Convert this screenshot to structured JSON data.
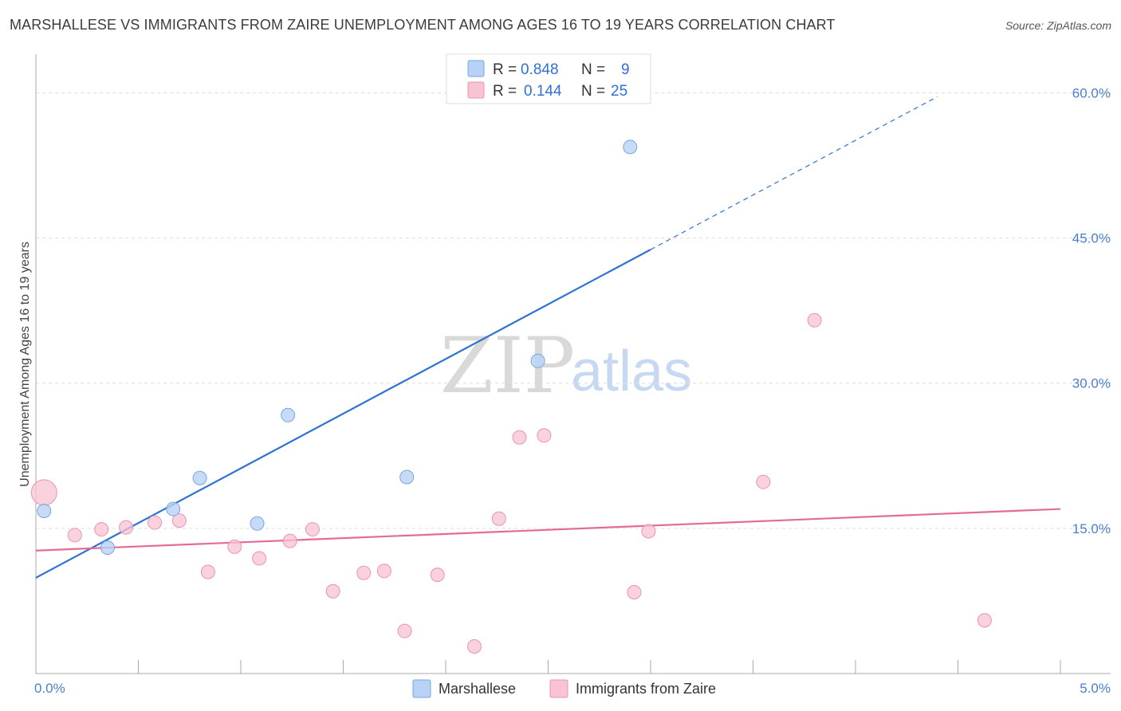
{
  "header": {
    "title": "MARSHALLESE VS IMMIGRANTS FROM ZAIRE UNEMPLOYMENT AMONG AGES 16 TO 19 YEARS CORRELATION CHART",
    "source": "Source: ZipAtlas.com"
  },
  "watermark": {
    "zip": "ZIP",
    "atlas": "atlas"
  },
  "colors": {
    "marshallese_fill": "#b7d2f5",
    "marshallese_stroke": "#7aa5e0",
    "marshallese_line": "#2e72d2",
    "zaire_fill": "#f8c3d3",
    "zaire_stroke": "#eb93b0",
    "zaire_line": "#e36b96",
    "grid": "#dddddd",
    "tick_label": "#4a7fd0"
  },
  "legend": {
    "row1": {
      "r_label": "R =",
      "r_value": "0.848",
      "n_label": "N =",
      "n_value": "9"
    },
    "row2": {
      "r_label": "R =",
      "r_value": "0.144",
      "n_label": "N =",
      "n_value": "25"
    }
  },
  "chart_data": {
    "type": "scatter",
    "title": "MARSHALLESE VS IMMIGRANTS FROM ZAIRE UNEMPLOYMENT AMONG AGES 16 TO 19 YEARS CORRELATION CHART",
    "xlabel": "",
    "ylabel": "Unemployment Among Ages 16 to 19 years",
    "xlim": [
      0,
      5
    ],
    "ylim": [
      0,
      63
    ],
    "x_tick_labels": [
      {
        "value": 0,
        "label": "0.0%"
      },
      {
        "value": 5,
        "label": "5.0%"
      }
    ],
    "y_tick_labels": [
      {
        "value": 15,
        "label": "15.0%"
      },
      {
        "value": 30,
        "label": "30.0%"
      },
      {
        "value": 45,
        "label": "45.0%"
      },
      {
        "value": 60,
        "label": "60.0%"
      }
    ],
    "y_gridlines": [
      15,
      30,
      45,
      60
    ],
    "series": [
      {
        "name": "Marshallese",
        "points": [
          {
            "x": 0.04,
            "y": 16.8
          },
          {
            "x": 0.35,
            "y": 13.0
          },
          {
            "x": 0.67,
            "y": 17.0
          },
          {
            "x": 0.8,
            "y": 20.2
          },
          {
            "x": 1.08,
            "y": 15.5
          },
          {
            "x": 1.23,
            "y": 26.7
          },
          {
            "x": 1.81,
            "y": 20.3
          },
          {
            "x": 2.45,
            "y": 32.3
          },
          {
            "x": 2.9,
            "y": 54.4
          }
        ],
        "trend": {
          "x0": 0,
          "y0": 9.9,
          "x1": 3.0,
          "y1": 43.8,
          "dashed_to_x": 4.4,
          "dashed_to_y": 59.6
        }
      },
      {
        "name": "Immigrants from Zaire",
        "points": [
          {
            "x": 0.04,
            "y": 18.7,
            "large": true
          },
          {
            "x": 0.19,
            "y": 14.3
          },
          {
            "x": 0.32,
            "y": 14.9
          },
          {
            "x": 0.44,
            "y": 15.1
          },
          {
            "x": 0.58,
            "y": 15.6
          },
          {
            "x": 0.7,
            "y": 15.8
          },
          {
            "x": 0.84,
            "y": 10.5
          },
          {
            "x": 0.97,
            "y": 13.1
          },
          {
            "x": 1.09,
            "y": 11.9
          },
          {
            "x": 1.24,
            "y": 13.7
          },
          {
            "x": 1.35,
            "y": 14.9
          },
          {
            "x": 1.45,
            "y": 8.5
          },
          {
            "x": 1.6,
            "y": 10.4
          },
          {
            "x": 1.7,
            "y": 10.6
          },
          {
            "x": 1.8,
            "y": 4.4
          },
          {
            "x": 1.96,
            "y": 10.2
          },
          {
            "x": 2.14,
            "y": 2.8
          },
          {
            "x": 2.26,
            "y": 16.0
          },
          {
            "x": 2.36,
            "y": 24.4
          },
          {
            "x": 2.48,
            "y": 24.6
          },
          {
            "x": 2.92,
            "y": 8.4
          },
          {
            "x": 2.99,
            "y": 14.7
          },
          {
            "x": 3.55,
            "y": 19.8
          },
          {
            "x": 3.8,
            "y": 36.5
          },
          {
            "x": 4.63,
            "y": 5.5
          }
        ],
        "trend": {
          "x0": 0,
          "y0": 12.7,
          "x1": 5.0,
          "y1": 17.0
        }
      }
    ]
  },
  "bottom_legend": {
    "item1": "Marshallese",
    "item2": "Immigrants from Zaire"
  }
}
